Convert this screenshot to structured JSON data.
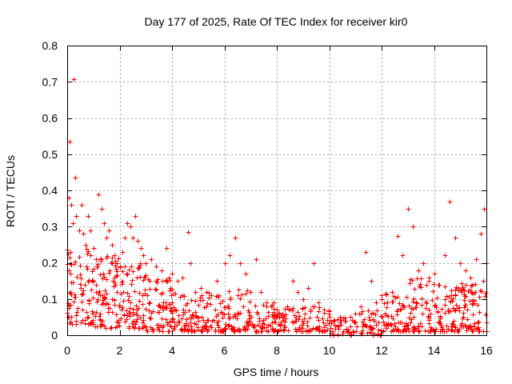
{
  "chart_data": {
    "type": "scatter",
    "title": "Day 177 of 2025, Rate Of TEC Index for receiver kir0",
    "xlabel": "GPS time / hours",
    "ylabel": "ROTI / TECUs",
    "xlim": [
      0,
      16
    ],
    "ylim": [
      0,
      0.8
    ],
    "xticks": [
      0,
      2,
      4,
      6,
      8,
      10,
      12,
      14,
      16
    ],
    "xtick_labels": [
      "0",
      "2",
      "4",
      "6",
      "8",
      "10",
      "12",
      "14",
      "16"
    ],
    "yticks": [
      0,
      0.1,
      0.2,
      0.3,
      0.4,
      0.5,
      0.6,
      0.7,
      0.8
    ],
    "ytick_labels": [
      "0",
      "0.1",
      "0.2",
      "0.3",
      "0.4",
      "0.5",
      "0.6",
      "0.7",
      "0.8"
    ],
    "grid": true,
    "marker": "+",
    "color": "#ff0000",
    "series": [
      {
        "name": "ROTI",
        "points": [
          [
            0.05,
            0.38
          ],
          [
            0.1,
            0.535
          ],
          [
            0.25,
            0.707
          ],
          [
            0.3,
            0.435
          ],
          [
            0.15,
            0.36
          ],
          [
            0.2,
            0.31
          ],
          [
            0.35,
            0.33
          ],
          [
            0.45,
            0.29
          ],
          [
            0.55,
            0.36
          ],
          [
            0.6,
            0.28
          ],
          [
            0.7,
            0.25
          ],
          [
            0.8,
            0.33
          ],
          [
            0.9,
            0.29
          ],
          [
            1.0,
            0.24
          ],
          [
            1.1,
            0.21
          ],
          [
            1.2,
            0.39
          ],
          [
            1.3,
            0.35
          ],
          [
            1.4,
            0.31
          ],
          [
            1.5,
            0.27
          ],
          [
            1.6,
            0.29
          ],
          [
            1.7,
            0.25
          ],
          [
            1.8,
            0.22
          ],
          [
            1.9,
            0.2
          ],
          [
            2.0,
            0.19
          ],
          [
            2.1,
            0.23
          ],
          [
            2.2,
            0.27
          ],
          [
            2.3,
            0.31
          ],
          [
            2.4,
            0.3
          ],
          [
            2.5,
            0.27
          ],
          [
            2.6,
            0.33
          ],
          [
            2.7,
            0.26
          ],
          [
            2.8,
            0.24
          ],
          [
            2.9,
            0.22
          ],
          [
            3.0,
            0.2
          ],
          [
            3.2,
            0.21
          ],
          [
            3.4,
            0.19
          ],
          [
            3.6,
            0.18
          ],
          [
            3.8,
            0.24
          ],
          [
            4.0,
            0.17
          ],
          [
            4.2,
            0.15
          ],
          [
            4.4,
            0.16
          ],
          [
            4.6,
            0.285
          ],
          [
            4.7,
            0.2
          ],
          [
            4.9,
            0.12
          ],
          [
            5.1,
            0.13
          ],
          [
            5.3,
            0.12
          ],
          [
            5.5,
            0.11
          ],
          [
            5.7,
            0.15
          ],
          [
            6.0,
            0.2
          ],
          [
            6.2,
            0.22
          ],
          [
            6.4,
            0.27
          ],
          [
            6.6,
            0.2
          ],
          [
            6.8,
            0.17
          ],
          [
            7.0,
            0.12
          ],
          [
            7.2,
            0.21
          ],
          [
            7.4,
            0.12
          ],
          [
            7.6,
            0.09
          ],
          [
            7.8,
            0.08
          ],
          [
            8.0,
            0.07
          ],
          [
            8.2,
            0.06
          ],
          [
            8.4,
            0.08
          ],
          [
            8.6,
            0.15
          ],
          [
            8.8,
            0.12
          ],
          [
            9.0,
            0.1
          ],
          [
            9.2,
            0.13
          ],
          [
            9.4,
            0.2
          ],
          [
            9.6,
            0.09
          ],
          [
            9.8,
            0.07
          ],
          [
            10.0,
            0.05
          ],
          [
            10.2,
            0.04
          ],
          [
            10.4,
            0.05
          ],
          [
            10.6,
            0.04
          ],
          [
            10.8,
            0.05
          ],
          [
            11.0,
            0.06
          ],
          [
            11.2,
            0.08
          ],
          [
            11.4,
            0.23
          ],
          [
            11.6,
            0.15
          ],
          [
            11.8,
            0.09
          ],
          [
            12.0,
            0.1
          ],
          [
            12.2,
            0.09
          ],
          [
            12.4,
            0.12
          ],
          [
            12.6,
            0.275
          ],
          [
            12.8,
            0.22
          ],
          [
            13.0,
            0.35
          ],
          [
            13.2,
            0.3
          ],
          [
            13.4,
            0.18
          ],
          [
            13.6,
            0.2
          ],
          [
            13.8,
            0.15
          ],
          [
            14.0,
            0.17
          ],
          [
            14.2,
            0.14
          ],
          [
            14.4,
            0.22
          ],
          [
            14.6,
            0.37
          ],
          [
            14.8,
            0.27
          ],
          [
            15.0,
            0.2
          ],
          [
            15.2,
            0.18
          ],
          [
            15.4,
            0.16
          ],
          [
            15.6,
            0.21
          ],
          [
            15.8,
            0.28
          ],
          [
            15.9,
            0.35
          ],
          [
            16.0,
            0.2
          ]
        ],
        "background_density": [
          {
            "x0": 0.0,
            "x1": 1.0,
            "ymin": 0.03,
            "ymax": 0.24,
            "count": 85
          },
          {
            "x0": 1.0,
            "x1": 2.0,
            "ymin": 0.02,
            "ymax": 0.22,
            "count": 85
          },
          {
            "x0": 2.0,
            "x1": 3.0,
            "ymin": 0.02,
            "ymax": 0.2,
            "count": 80
          },
          {
            "x0": 3.0,
            "x1": 4.0,
            "ymin": 0.01,
            "ymax": 0.16,
            "count": 75
          },
          {
            "x0": 4.0,
            "x1": 5.0,
            "ymin": 0.01,
            "ymax": 0.12,
            "count": 65
          },
          {
            "x0": 5.0,
            "x1": 6.0,
            "ymin": 0.01,
            "ymax": 0.12,
            "count": 60
          },
          {
            "x0": 6.0,
            "x1": 7.0,
            "ymin": 0.01,
            "ymax": 0.13,
            "count": 60
          },
          {
            "x0": 7.0,
            "x1": 8.0,
            "ymin": 0.01,
            "ymax": 0.09,
            "count": 55
          },
          {
            "x0": 8.0,
            "x1": 9.0,
            "ymin": 0.01,
            "ymax": 0.08,
            "count": 50
          },
          {
            "x0": 9.0,
            "x1": 10.0,
            "ymin": 0.01,
            "ymax": 0.08,
            "count": 45
          },
          {
            "x0": 10.0,
            "x1": 11.0,
            "ymin": 0.0,
            "ymax": 0.05,
            "count": 40
          },
          {
            "x0": 11.0,
            "x1": 12.0,
            "ymin": 0.0,
            "ymax": 0.07,
            "count": 45
          },
          {
            "x0": 12.0,
            "x1": 13.0,
            "ymin": 0.01,
            "ymax": 0.12,
            "count": 60
          },
          {
            "x0": 13.0,
            "x1": 14.0,
            "ymin": 0.01,
            "ymax": 0.16,
            "count": 70
          },
          {
            "x0": 14.0,
            "x1": 15.0,
            "ymin": 0.01,
            "ymax": 0.14,
            "count": 70
          },
          {
            "x0": 15.0,
            "x1": 16.0,
            "ymin": 0.01,
            "ymax": 0.15,
            "count": 75
          }
        ]
      }
    ]
  }
}
